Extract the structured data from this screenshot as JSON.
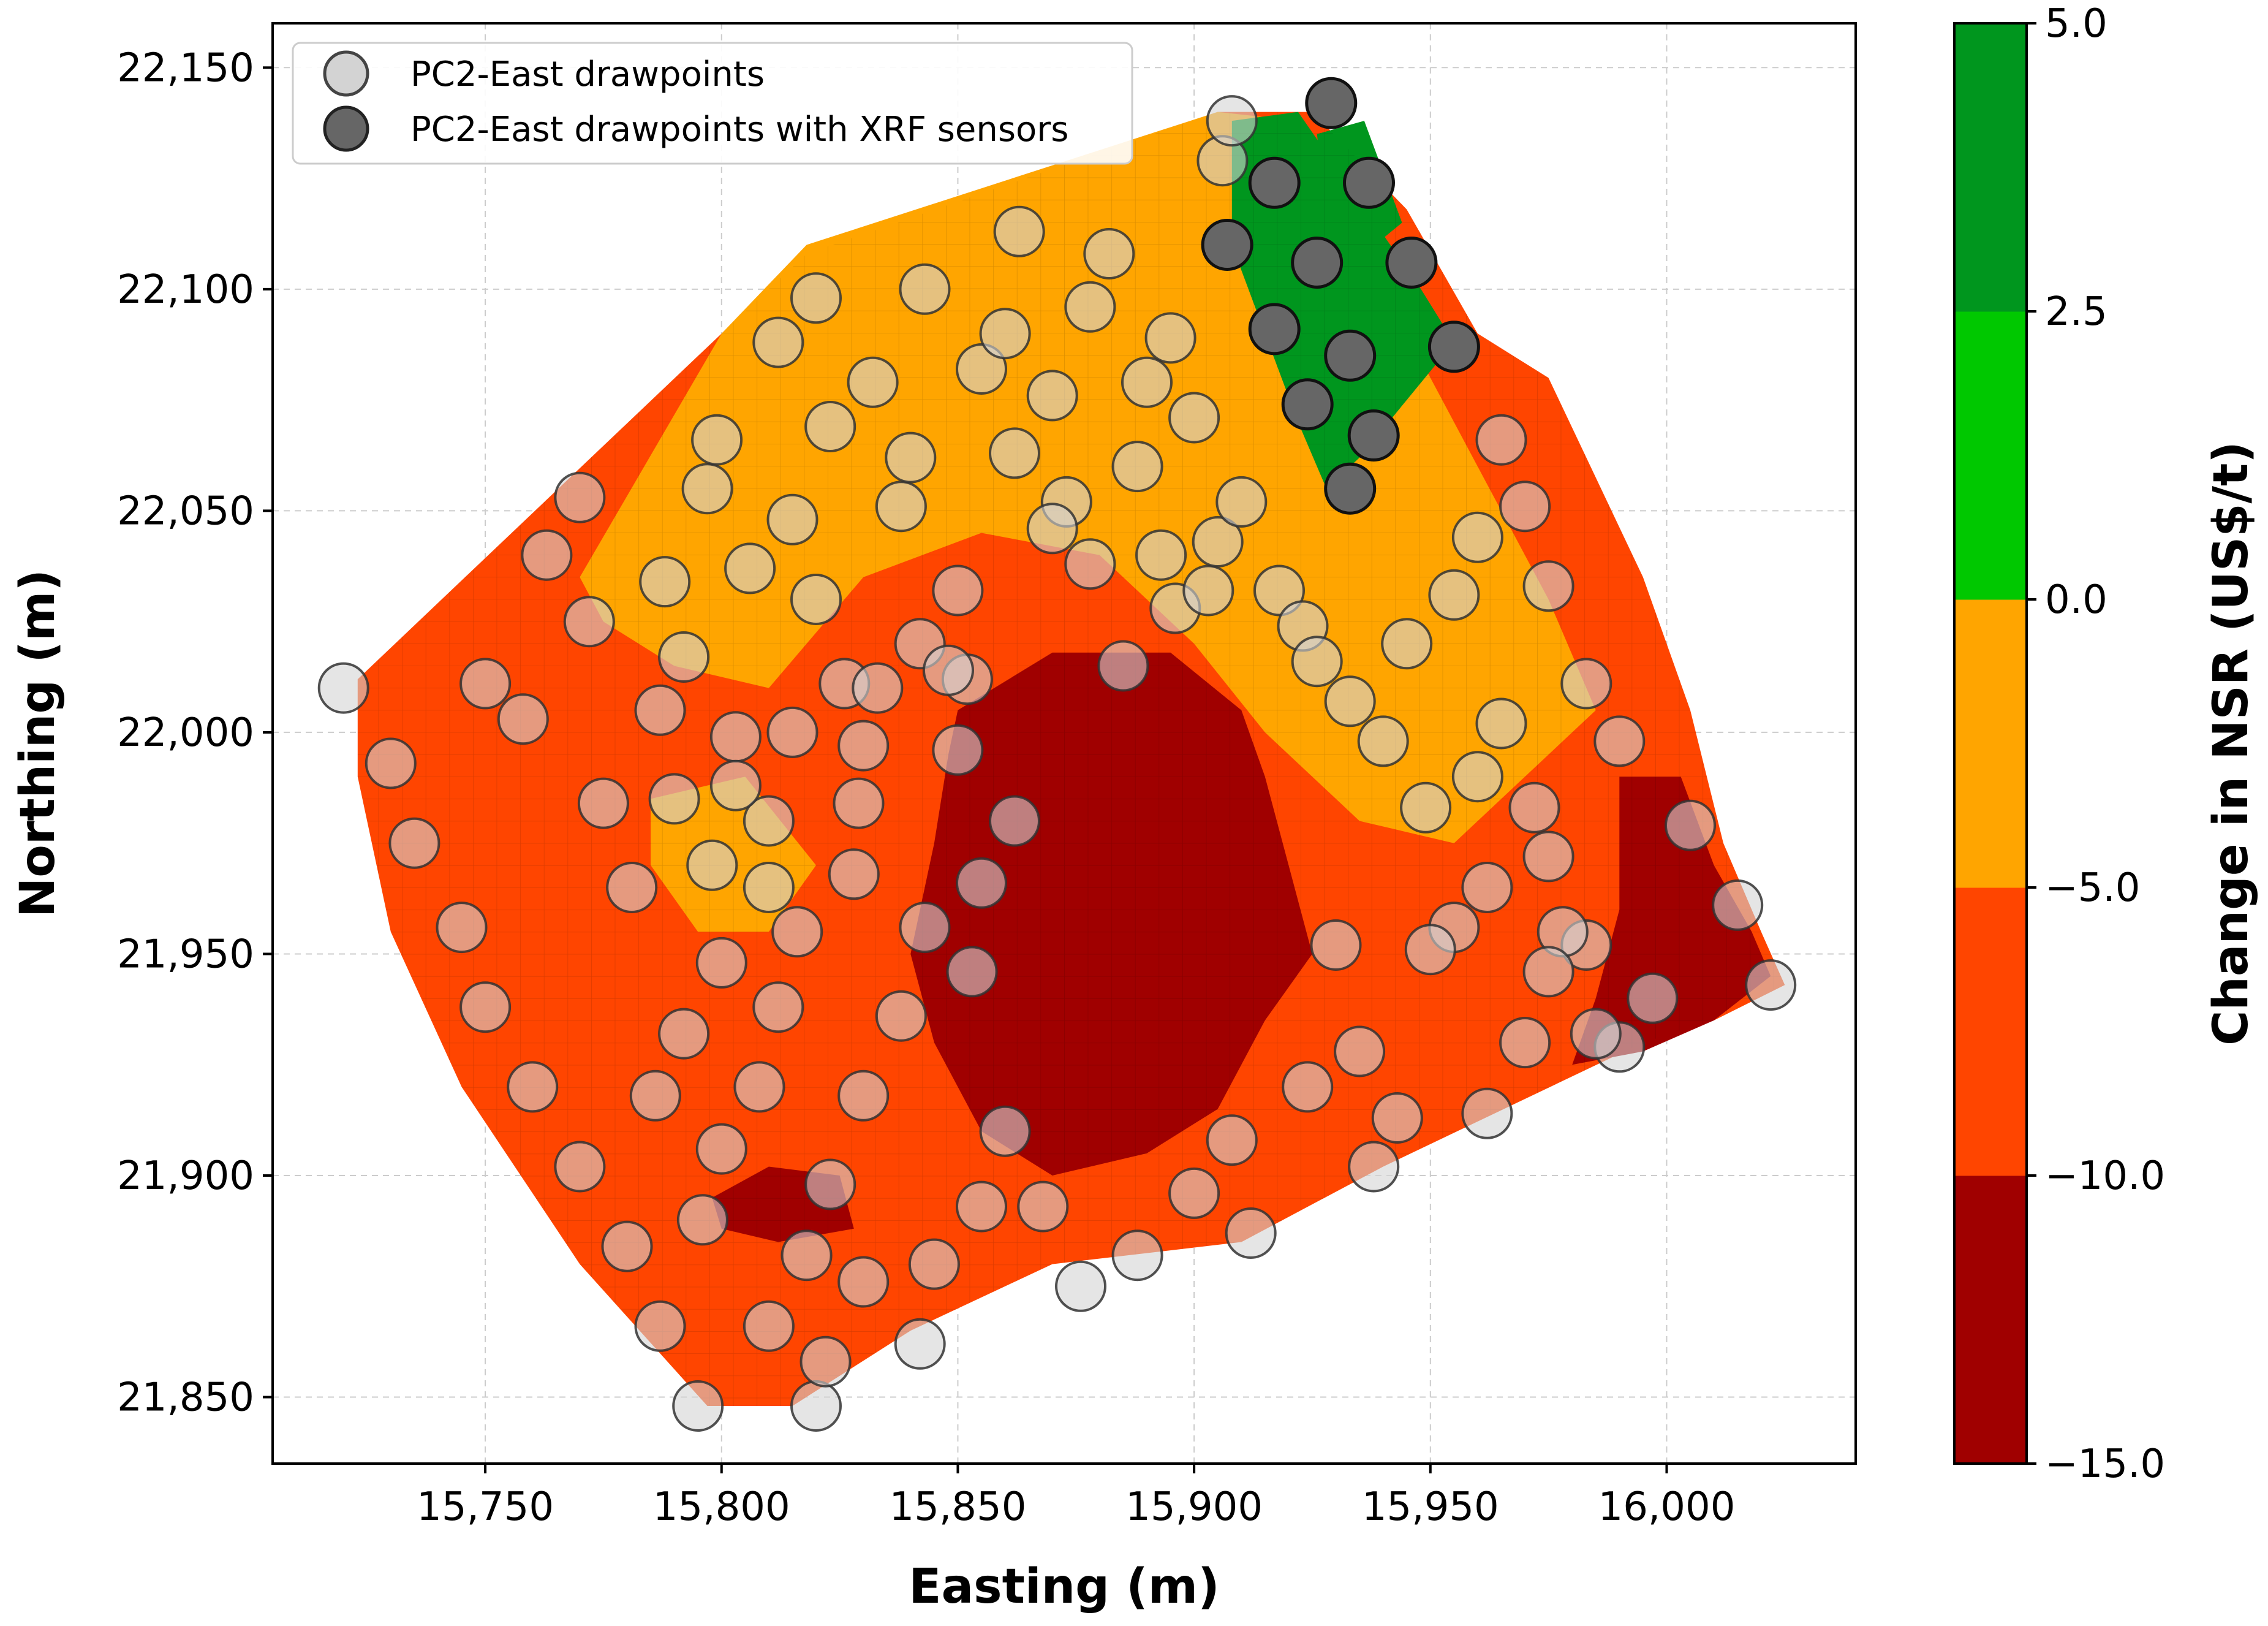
{
  "chart_data": {
    "type": "heatmap",
    "title": "",
    "xlabel": "Easting (m)",
    "ylabel": "Northing (m)",
    "xlim": [
      15705,
      16040
    ],
    "ylim": [
      21835,
      22160
    ],
    "grid": true,
    "x_ticks": [
      15750,
      15800,
      15850,
      15900,
      15950,
      16000
    ],
    "x_tick_labels": [
      "15,750",
      "15,800",
      "15,850",
      "15,900",
      "15,950",
      "16,000"
    ],
    "y_ticks": [
      21850,
      21900,
      21950,
      22000,
      22050,
      22100,
      22150
    ],
    "y_tick_labels": [
      "21,850",
      "21,900",
      "21,950",
      "22,000",
      "22,050",
      "22,100",
      "22,150"
    ],
    "cell_size_m": 5,
    "colorbar": {
      "label": "Change in NSR (US$/t)",
      "bins": [
        {
          "from": -15.0,
          "to": -10.0,
          "color": "#a00000"
        },
        {
          "from": -10.0,
          "to": -5.0,
          "color": "#ff4500"
        },
        {
          "from": -5.0,
          "to": 0.0,
          "color": "#ffa500"
        },
        {
          "from": 0.0,
          "to": 2.5,
          "color": "#00c800"
        },
        {
          "from": 2.5,
          "to": 5.0,
          "color": "#00961e"
        }
      ],
      "tick_values": [
        -15.0,
        -10.0,
        -5.0,
        0.0,
        2.5,
        5.0
      ],
      "tick_labels": [
        "−15.0",
        "−10.0",
        "−5.0",
        "0.0",
        "2.5",
        "5.0"
      ]
    },
    "block_model": {
      "footprint_polygon": [
        [
          15723,
          22012
        ],
        [
          15800,
          22090
        ],
        [
          15818,
          22108
        ],
        [
          15905,
          22140
        ],
        [
          15925,
          22140
        ],
        [
          15945,
          22118
        ],
        [
          15960,
          22090
        ],
        [
          15975,
          22080
        ],
        [
          15995,
          22035
        ],
        [
          16005,
          22005
        ],
        [
          16012,
          21975
        ],
        [
          16020,
          21955
        ],
        [
          16025,
          21943
        ],
        [
          16010,
          21935
        ],
        [
          15995,
          21930
        ],
        [
          15940,
          21902
        ],
        [
          15910,
          21885
        ],
        [
          15870,
          21880
        ],
        [
          15840,
          21865
        ],
        [
          15815,
          21848
        ],
        [
          15797,
          21848
        ],
        [
          15770,
          21880
        ],
        [
          15745,
          21920
        ],
        [
          15730,
          21955
        ],
        [
          15723,
          21990
        ]
      ],
      "zones": [
        {
          "value": -2.5,
          "polygon": [
            [
              15770,
              22035
            ],
            [
              15800,
              22090
            ],
            [
              15818,
              22110
            ],
            [
              15905,
              22140
            ],
            [
              15922,
              22138
            ],
            [
              15940,
              22100
            ],
            [
              15960,
              22060
            ],
            [
              15975,
              22030
            ],
            [
              15985,
              22005
            ],
            [
              15970,
              21990
            ],
            [
              15955,
              21975
            ],
            [
              15935,
              21980
            ],
            [
              15915,
              22000
            ],
            [
              15900,
              22020
            ],
            [
              15880,
              22040
            ],
            [
              15855,
              22045
            ],
            [
              15830,
              22035
            ],
            [
              15810,
              22010
            ],
            [
              15790,
              22015
            ],
            [
              15775,
              22025
            ]
          ]
        },
        {
          "value": -2.5,
          "polygon": [
            [
              15785,
              21985
            ],
            [
              15805,
              21990
            ],
            [
              15820,
              21970
            ],
            [
              15810,
              21955
            ],
            [
              15795,
              21955
            ],
            [
              15785,
              21970
            ]
          ]
        },
        {
          "value": 2.5,
          "polygon": [
            [
              15908,
              22138
            ],
            [
              15922,
              22140
            ],
            [
              15935,
              22120
            ],
            [
              15948,
              22100
            ],
            [
              15955,
              22088
            ],
            [
              15945,
              22075
            ],
            [
              15935,
              22062
            ],
            [
              15928,
              22055
            ],
            [
              15922,
              22070
            ],
            [
              15915,
              22090
            ],
            [
              15908,
              22110
            ]
          ]
        },
        {
          "value": 3.75,
          "polygon": [
            [
              15926,
              22135
            ],
            [
              15936,
              22138
            ],
            [
              15944,
              22115
            ],
            [
              15936,
              22108
            ],
            [
              15928,
              22115
            ]
          ]
        },
        {
          "value": -12.5,
          "polygon": [
            [
              15850,
              22005
            ],
            [
              15870,
              22018
            ],
            [
              15895,
              22018
            ],
            [
              15910,
              22005
            ],
            [
              15915,
              21990
            ],
            [
              15920,
              21970
            ],
            [
              15925,
              21950
            ],
            [
              15915,
              21935
            ],
            [
              15905,
              21915
            ],
            [
              15890,
              21905
            ],
            [
              15870,
              21900
            ],
            [
              15855,
              21910
            ],
            [
              15845,
              21930
            ],
            [
              15840,
              21950
            ],
            [
              15845,
              21975
            ],
            [
              15848,
              21995
            ]
          ]
        },
        {
          "value": -12.5,
          "polygon": [
            [
              15798,
              21895
            ],
            [
              15810,
              21902
            ],
            [
              15825,
              21900
            ],
            [
              15828,
              21888
            ],
            [
              15812,
              21885
            ],
            [
              15800,
              21888
            ]
          ]
        },
        {
          "value": -12.5,
          "polygon": [
            [
              15990,
              21990
            ],
            [
              16003,
              21990
            ],
            [
              16010,
              21970
            ],
            [
              16018,
              21955
            ],
            [
              16022,
              21945
            ],
            [
              16010,
              21935
            ],
            [
              15995,
              21928
            ],
            [
              15980,
              21925
            ],
            [
              15985,
              21940
            ],
            [
              15990,
              21960
            ]
          ]
        }
      ]
    },
    "series": [
      {
        "name": "PC2-East drawpoints",
        "marker_color": "#d3d3d3",
        "points": [
          [
            15720,
            22010
          ],
          [
            15730,
            21993
          ],
          [
            15735,
            21975
          ],
          [
            15745,
            21956
          ],
          [
            15750,
            21938
          ],
          [
            15760,
            21920
          ],
          [
            15770,
            21902
          ],
          [
            15780,
            21884
          ],
          [
            15787,
            21866
          ],
          [
            15795,
            21848
          ],
          [
            15820,
            21848
          ],
          [
            15750,
            22011
          ],
          [
            15758,
            22003
          ],
          [
            15763,
            22040
          ],
          [
            15770,
            22053
          ],
          [
            15772,
            22025
          ],
          [
            15775,
            21984
          ],
          [
            15781,
            21965
          ],
          [
            15787,
            22005
          ],
          [
            15788,
            22034
          ],
          [
            15792,
            22017
          ],
          [
            15797,
            22055
          ],
          [
            15799,
            22066
          ],
          [
            15803,
            21999
          ],
          [
            15806,
            22037
          ],
          [
            15810,
            21980
          ],
          [
            15815,
            22048
          ],
          [
            15820,
            22030
          ],
          [
            15812,
            22088
          ],
          [
            15820,
            22098
          ],
          [
            15823,
            22069
          ],
          [
            15826,
            22011
          ],
          [
            15829,
            21984
          ],
          [
            15832,
            22079
          ],
          [
            15838,
            22051
          ],
          [
            15840,
            22062
          ],
          [
            15843,
            22100
          ],
          [
            15850,
            22032
          ],
          [
            15852,
            22012
          ],
          [
            15855,
            22082
          ],
          [
            15860,
            22090
          ],
          [
            15862,
            22063
          ],
          [
            15870,
            22076
          ],
          [
            15873,
            22052
          ],
          [
            15878,
            22096
          ],
          [
            15882,
            22108
          ],
          [
            15890,
            22079
          ],
          [
            15895,
            22089
          ],
          [
            15900,
            22071
          ],
          [
            15906,
            22129
          ],
          [
            15908,
            22138
          ],
          [
            15863,
            22113
          ],
          [
            15870,
            22046
          ],
          [
            15878,
            22038
          ],
          [
            15885,
            22015
          ],
          [
            15888,
            22060
          ],
          [
            15893,
            22040
          ],
          [
            15896,
            22028
          ],
          [
            15903,
            22032
          ],
          [
            15905,
            22043
          ],
          [
            15910,
            22052
          ],
          [
            15918,
            22032
          ],
          [
            15923,
            22024
          ],
          [
            15926,
            22016
          ],
          [
            15933,
            22007
          ],
          [
            15940,
            21998
          ],
          [
            15945,
            22020
          ],
          [
            15949,
            21983
          ],
          [
            15955,
            22031
          ],
          [
            15960,
            22044
          ],
          [
            15965,
            22066
          ],
          [
            15970,
            22051
          ],
          [
            15975,
            22033
          ],
          [
            15983,
            22011
          ],
          [
            15990,
            21998
          ],
          [
            16005,
            21979
          ],
          [
            16015,
            21961
          ],
          [
            16022,
            21943
          ],
          [
            15997,
            21940
          ],
          [
            15990,
            21929
          ],
          [
            15983,
            21952
          ],
          [
            15975,
            21972
          ],
          [
            15962,
            21965
          ],
          [
            15955,
            21956
          ],
          [
            15950,
            21951
          ],
          [
            15960,
            21990
          ],
          [
            15965,
            22002
          ],
          [
            15972,
            21983
          ],
          [
            15978,
            21955
          ],
          [
            15985,
            21932
          ],
          [
            15962,
            21914
          ],
          [
            15970,
            21930
          ],
          [
            15975,
            21946
          ],
          [
            15943,
            21913
          ],
          [
            15938,
            21902
          ],
          [
            15935,
            21928
          ],
          [
            15930,
            21952
          ],
          [
            15924,
            21920
          ],
          [
            15912,
            21887
          ],
          [
            15900,
            21896
          ],
          [
            15908,
            21908
          ],
          [
            15888,
            21882
          ],
          [
            15876,
            21875
          ],
          [
            15868,
            21893
          ],
          [
            15860,
            21910
          ],
          [
            15855,
            21893
          ],
          [
            15845,
            21880
          ],
          [
            15842,
            21862
          ],
          [
            15830,
            21876
          ],
          [
            15822,
            21858
          ],
          [
            15810,
            21866
          ],
          [
            15818,
            21882
          ],
          [
            15823,
            21898
          ],
          [
            15830,
            21918
          ],
          [
            15838,
            21936
          ],
          [
            15843,
            21956
          ],
          [
            15853,
            21946
          ],
          [
            15855,
            21966
          ],
          [
            15862,
            21980
          ],
          [
            15850,
            21996
          ],
          [
            15842,
            22020
          ],
          [
            15830,
            21997
          ],
          [
            15828,
            21968
          ],
          [
            15816,
            21955
          ],
          [
            15812,
            21938
          ],
          [
            15808,
            21920
          ],
          [
            15800,
            21906
          ],
          [
            15796,
            21890
          ],
          [
            15786,
            21918
          ],
          [
            15792,
            21932
          ],
          [
            15800,
            21948
          ],
          [
            15810,
            21965
          ],
          [
            15798,
            21970
          ],
          [
            15790,
            21985
          ],
          [
            15803,
            21988
          ],
          [
            15815,
            22000
          ],
          [
            15833,
            22010
          ],
          [
            15848,
            22014
          ]
        ]
      },
      {
        "name": "PC2-East drawpoints with XRF sensors",
        "marker_color": "#666666",
        "points": [
          [
            15929,
            22142
          ],
          [
            15917,
            22124
          ],
          [
            15937,
            22124
          ],
          [
            15907,
            22110
          ],
          [
            15926,
            22106
          ],
          [
            15946,
            22106
          ],
          [
            15917,
            22091
          ],
          [
            15933,
            22085
          ],
          [
            15955,
            22087
          ],
          [
            15924,
            22074
          ],
          [
            15938,
            22067
          ],
          [
            15933,
            22055
          ]
        ]
      }
    ]
  }
}
